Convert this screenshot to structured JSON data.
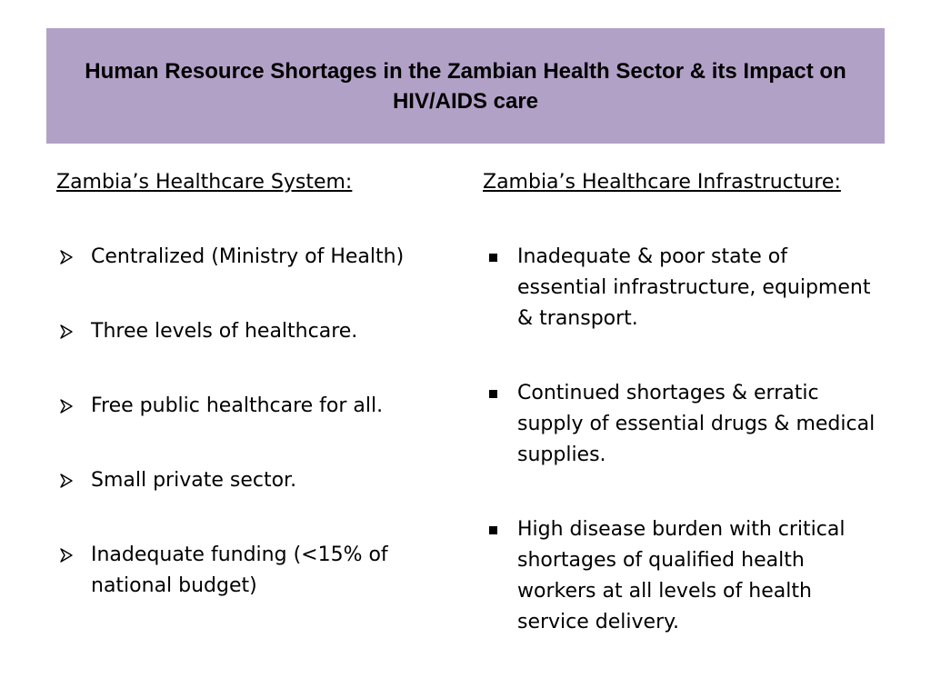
{
  "slide": {
    "title": "Human Resource Shortages in the Zambian Health Sector & its Impact on HIV/AIDS care"
  },
  "left_column": {
    "heading": "Zambia’s Healthcare System:",
    "bullet_icon": "arrow-bullet-icon",
    "items": [
      "Centralized (Ministry of Health)",
      "Three levels of healthcare.",
      "Free public healthcare for all.",
      "Small private sector.",
      "Inadequate funding (<15% of national budget)"
    ]
  },
  "right_column": {
    "heading": "Zambia’s Healthcare Infrastructure:",
    "bullet_icon": "square-bullet-icon",
    "items": [
      "Inadequate & poor state of essential infrastructure, equipment & transport.",
      "Continued shortages & erratic supply of essential drugs & medical supplies.",
      "High disease burden with critical shortages of qualified health workers at all levels of health service delivery."
    ]
  },
  "colors": {
    "title_background": "#b2a1c7",
    "text": "#000000"
  }
}
